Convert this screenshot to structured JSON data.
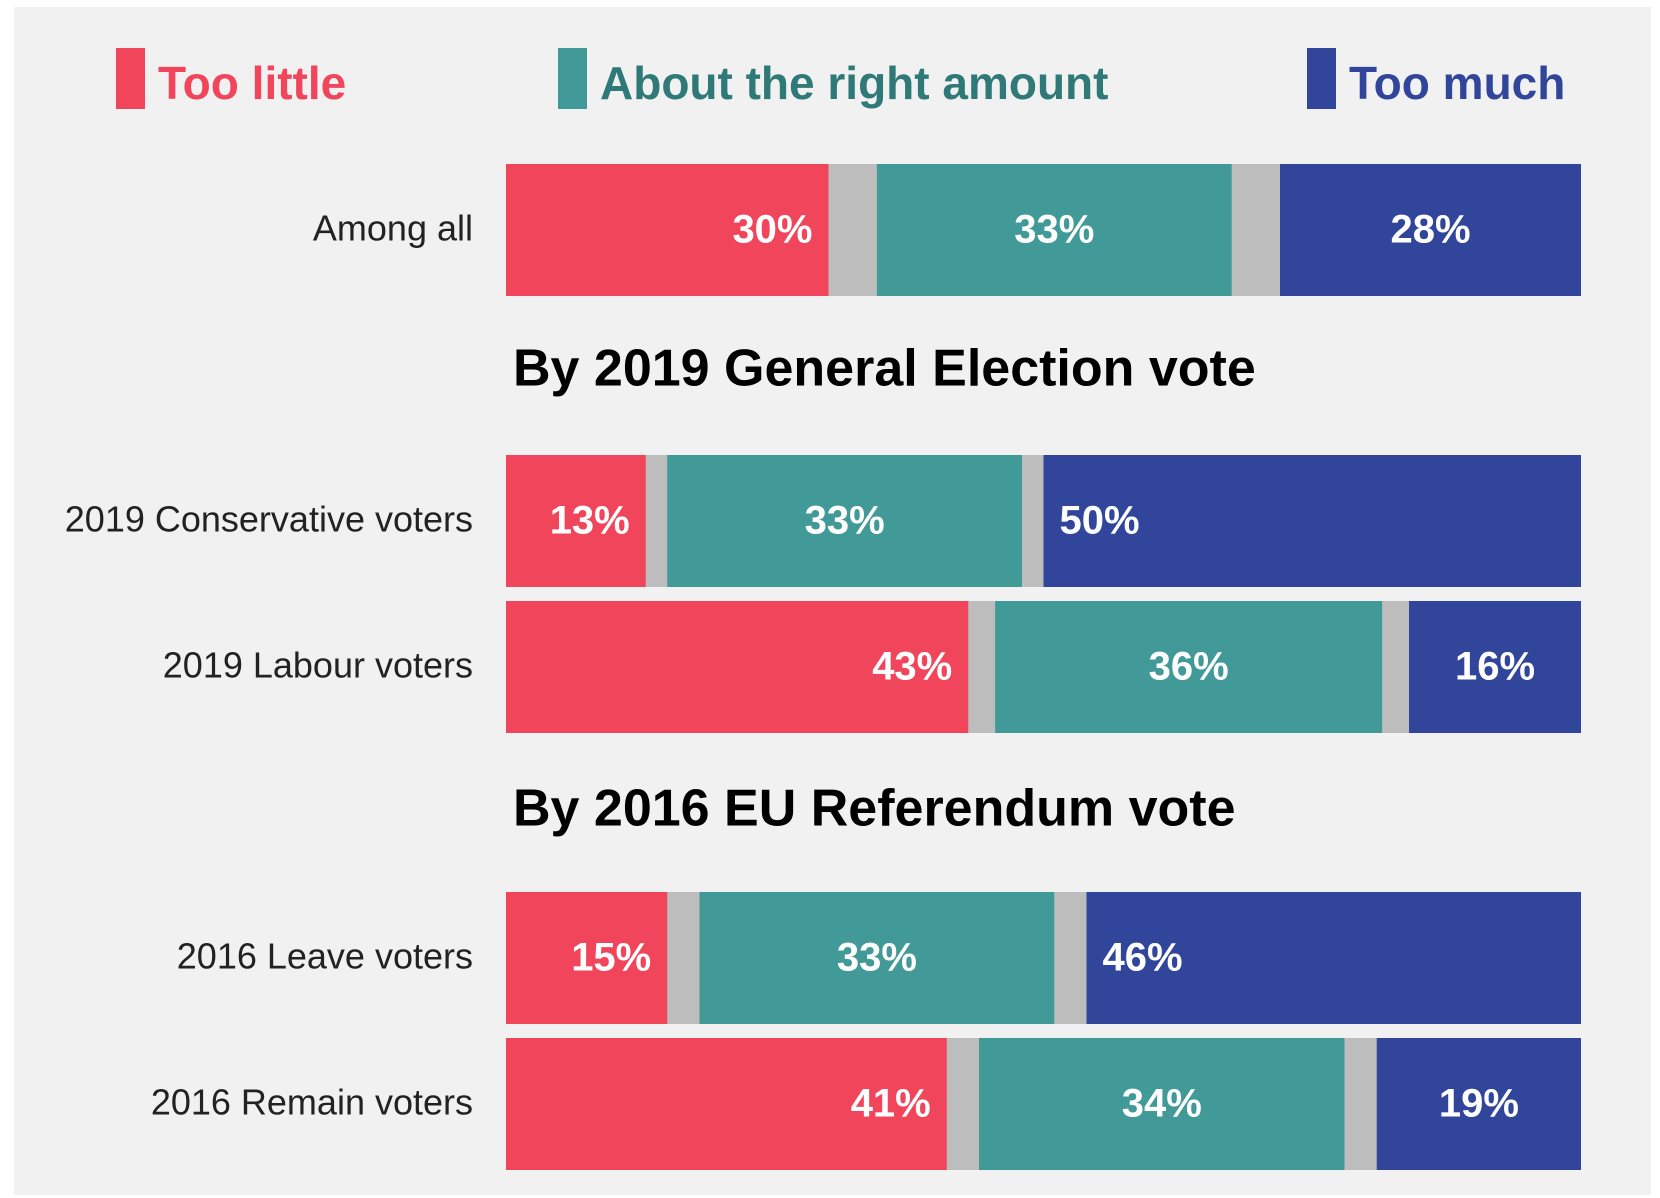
{
  "chart_data": {
    "type": "bar",
    "orientation": "horizontal",
    "stacked": true,
    "xlim": [
      0,
      100
    ],
    "colors": {
      "too_little": "#f0455a",
      "about_right": "#429a98",
      "too_much": "#31469b",
      "gap": "#bdbdbd",
      "label_text": "#ffffff",
      "legend_about_right_text": "#2f7a78",
      "category_text": "#222222",
      "heading_text": "#000000"
    },
    "legend": {
      "placement": "top",
      "entries": [
        {
          "key": "too_little",
          "label": "Too little"
        },
        {
          "key": "about_right",
          "label": "About the right amount"
        },
        {
          "key": "too_much",
          "label": "Too much"
        }
      ]
    },
    "series": [
      {
        "name": "Too little",
        "key": "too_little"
      },
      {
        "name": "About the right amount",
        "key": "about_right"
      },
      {
        "name": "Too much",
        "key": "too_much"
      }
    ],
    "groups": [
      {
        "heading": "",
        "rows": [
          {
            "category": "Among all",
            "too_little": 30,
            "about_right": 33,
            "too_much": 28
          }
        ]
      },
      {
        "heading": "By 2019 General Election vote",
        "rows": [
          {
            "category": "2019 Conservative voters",
            "too_little": 13,
            "about_right": 33,
            "too_much": 50
          },
          {
            "category": "2019 Labour voters",
            "too_little": 43,
            "about_right": 36,
            "too_much": 16
          }
        ]
      },
      {
        "heading": "By 2016 EU Referendum vote",
        "rows": [
          {
            "category": "2016 Leave voters",
            "too_little": 15,
            "about_right": 33,
            "too_much": 46
          },
          {
            "category": "2016 Remain voters",
            "too_little": 41,
            "about_right": 34,
            "too_much": 19
          }
        ]
      }
    ]
  }
}
